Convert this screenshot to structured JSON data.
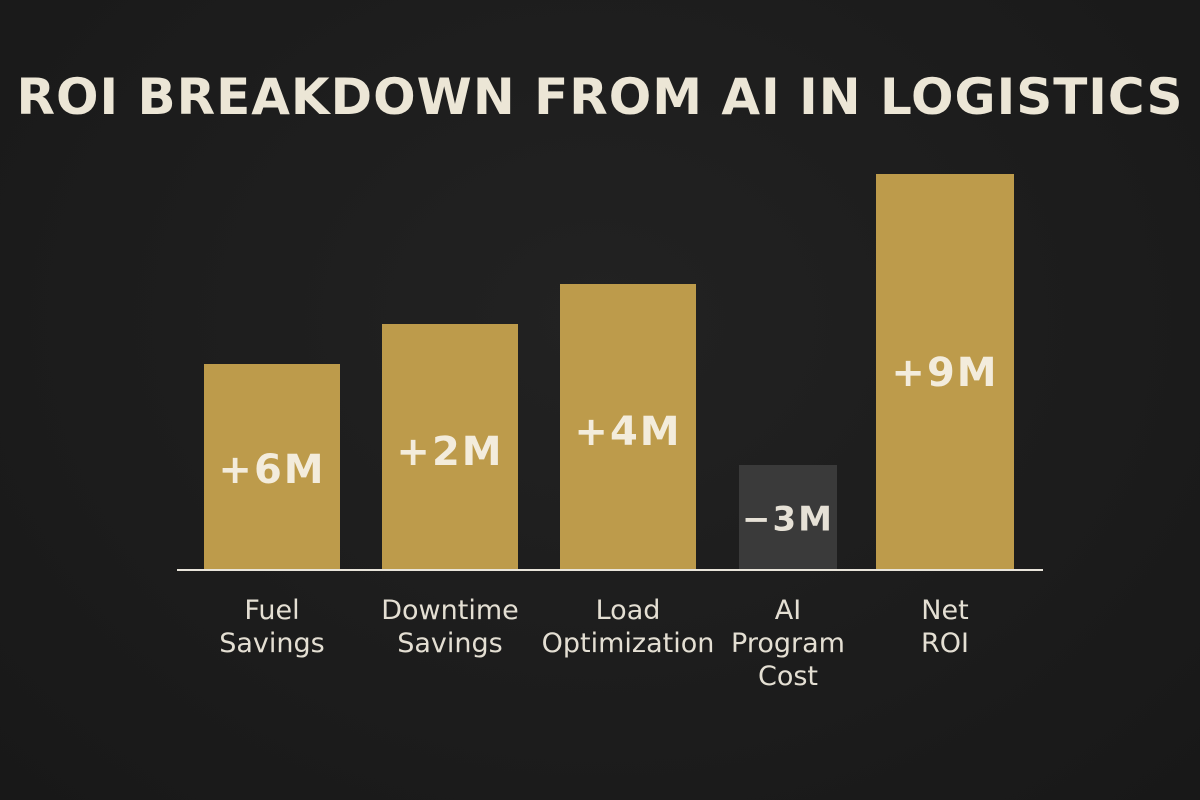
{
  "chart_data": {
    "type": "bar",
    "title": "ROI BREAKDOWN FROM AI IN LOGISTICS",
    "categories": [
      "Fuel Savings",
      "Downtime Savings",
      "Load Optimization",
      "AI Program Cost",
      "Net ROI"
    ],
    "category_lines": [
      [
        "Fuel",
        "Savings"
      ],
      [
        "Downtime",
        "Savings"
      ],
      [
        "Load",
        "Optimization"
      ],
      [
        "AI",
        "Program",
        "Cost"
      ],
      [
        "Net",
        "ROI"
      ]
    ],
    "values": [
      6,
      2,
      4,
      -3,
      9
    ],
    "value_labels": [
      "+6M",
      "+2M",
      "+4M",
      "−3M",
      "+9M"
    ],
    "unit": "M",
    "xlabel": "",
    "ylabel": "",
    "grid": false,
    "colors": {
      "positive": "#bd9b4b",
      "negative": "#3a3a3a",
      "baseline": "#e8e4da",
      "text": "#ece6d6",
      "background": "#1c1c1c"
    }
  }
}
